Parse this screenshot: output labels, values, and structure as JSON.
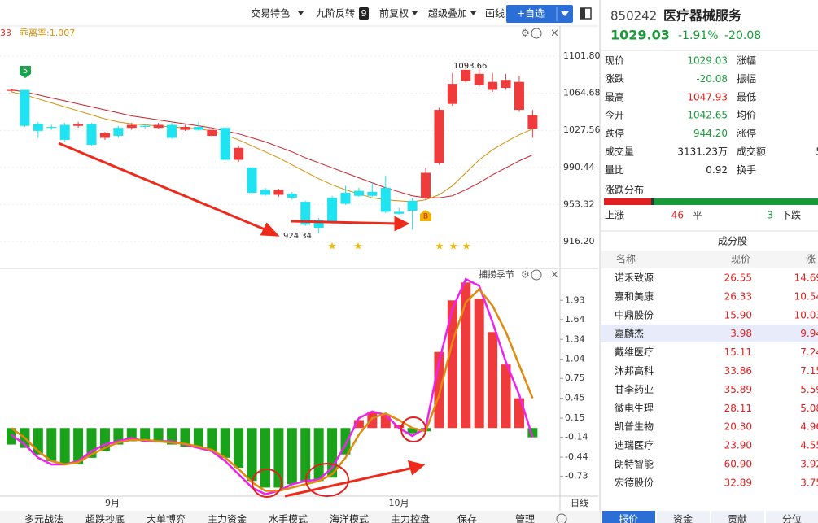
{
  "toolbar": {
    "items": [
      "交易特色",
      "九阶反转",
      "前复权",
      "超级叠加",
      "画线"
    ],
    "badge": "9",
    "add_button": "+自选"
  },
  "chart": {
    "type": "candlestick",
    "label_prefix": "33",
    "label": "乖离率:1.007",
    "signal_top": "5",
    "signal_buy": "B",
    "ylim": [
      899.1,
      1125.4
    ],
    "yticks": [
      {
        "value": 1101.8,
        "label": "1101.80"
      },
      1064.68,
      1027.56,
      990.44,
      953.32,
      {
        "value": 916.2,
        "label": "916.20"
      }
    ],
    "high_note": 1093.66,
    "low_note": 924.34,
    "candles": [
      {
        "o": 1068,
        "h": 1069,
        "l": 1066,
        "c": 1067,
        "color": "#ee3b3b"
      },
      {
        "o": 1068,
        "h": 1068,
        "l": 1031,
        "c": 1032,
        "color": "#1fe3f0"
      },
      {
        "o": 1034,
        "h": 1036,
        "l": 1020,
        "c": 1027,
        "color": "#1fe3f0"
      },
      {
        "o": 1031,
        "h": 1033,
        "l": 1028,
        "c": 1030,
        "color": "#1fe3f0"
      },
      {
        "o": 1033,
        "h": 1035,
        "l": 1016,
        "c": 1018,
        "color": "#1fe3f0"
      },
      {
        "o": 1032,
        "h": 1036,
        "l": 1030,
        "c": 1034,
        "color": "#ee3b3b"
      },
      {
        "o": 1034,
        "h": 1035,
        "l": 1012,
        "c": 1013,
        "color": "#1fe3f0"
      },
      {
        "o": 1020,
        "h": 1026,
        "l": 1018,
        "c": 1025,
        "color": "#ee3b3b"
      },
      {
        "o": 1030,
        "h": 1032,
        "l": 1020,
        "c": 1022,
        "color": "#1fe3f0"
      },
      {
        "o": 1030,
        "h": 1035,
        "l": 1028,
        "c": 1033,
        "color": "#ee3b3b"
      },
      {
        "o": 1032,
        "h": 1034,
        "l": 1029,
        "c": 1031,
        "color": "#1fe3f0"
      },
      {
        "o": 1030,
        "h": 1035,
        "l": 1029,
        "c": 1033,
        "color": "#ee3b3b"
      },
      {
        "o": 1033,
        "h": 1035,
        "l": 1019,
        "c": 1020,
        "color": "#1fe3f0"
      },
      {
        "o": 1028,
        "h": 1033,
        "l": 1027,
        "c": 1031,
        "color": "#ee3b3b"
      },
      {
        "o": 1031,
        "h": 1036,
        "l": 1027,
        "c": 1028,
        "color": "#1fe3f0"
      },
      {
        "o": 1022,
        "h": 1029,
        "l": 1021,
        "c": 1028,
        "color": "#ee3b3b"
      },
      {
        "o": 1030,
        "h": 1031,
        "l": 997,
        "c": 998,
        "color": "#1fe3f0"
      },
      {
        "o": 998,
        "h": 1012,
        "l": 996,
        "c": 1010,
        "color": "#ee3b3b"
      },
      {
        "o": 990,
        "h": 991,
        "l": 964,
        "c": 965,
        "color": "#1fe3f0"
      },
      {
        "o": 968,
        "h": 970,
        "l": 962,
        "c": 963,
        "color": "#1fe3f0"
      },
      {
        "o": 963,
        "h": 969,
        "l": 961,
        "c": 968,
        "color": "#ee3b3b"
      },
      {
        "o": 964,
        "h": 966,
        "l": 958,
        "c": 960,
        "color": "#1fe3f0"
      },
      {
        "o": 956,
        "h": 957,
        "l": 932,
        "c": 933,
        "color": "#1fe3f0"
      },
      {
        "o": 938,
        "h": 940,
        "l": 924.34,
        "c": 930,
        "color": "#1fe3f0"
      },
      {
        "o": 960,
        "h": 962,
        "l": 934,
        "c": 936,
        "color": "#1fe3f0"
      },
      {
        "o": 965,
        "h": 972,
        "l": 953,
        "c": 954,
        "color": "#1fe3f0"
      },
      {
        "o": 967,
        "h": 970,
        "l": 961,
        "c": 962,
        "color": "#1fe3f0"
      },
      {
        "o": 966,
        "h": 975,
        "l": 961,
        "c": 962,
        "color": "#1fe3f0"
      },
      {
        "o": 970,
        "h": 982,
        "l": 945,
        "c": 946,
        "color": "#1fe3f0"
      },
      {
        "o": 946,
        "h": 950,
        "l": 943,
        "c": 944,
        "color": "#1fe3f0"
      },
      {
        "o": 957,
        "h": 960,
        "l": 928,
        "c": 947,
        "color": "#1fe3f0"
      },
      {
        "o": 960,
        "h": 990,
        "l": 958,
        "c": 985,
        "color": "#ee3b3b"
      },
      {
        "o": 995,
        "h": 1050,
        "l": 993,
        "c": 1048,
        "color": "#ee3b3b"
      },
      {
        "o": 1054,
        "h": 1085,
        "l": 1052,
        "c": 1074,
        "color": "#ee3b3b"
      },
      {
        "o": 1077,
        "h": 1093.66,
        "l": 1075,
        "c": 1088,
        "color": "#ee3b3b"
      },
      {
        "o": 1073,
        "h": 1090,
        "l": 1071,
        "c": 1084,
        "color": "#ee3b3b"
      },
      {
        "o": 1068,
        "h": 1085,
        "l": 1066,
        "c": 1076,
        "color": "#ee3b3b"
      },
      {
        "o": 1070,
        "h": 1084,
        "l": 1068,
        "c": 1078,
        "color": "#ee3b3b"
      },
      {
        "o": 1076,
        "h": 1082,
        "l": 1046,
        "c": 1048,
        "color": "#ee3b3b"
      },
      {
        "o": 1042.65,
        "h": 1047.93,
        "l": 1020,
        "c": 1029.03,
        "color": "#ee3b3b"
      }
    ],
    "ma": [
      {
        "color": "#c8242c",
        "values": [
          1068,
          1066,
          1063,
          1060,
          1057,
          1054,
          1051,
          1048,
          1045,
          1042,
          1040,
          1038,
          1036,
          1034,
          1032,
          1030,
          1027,
          1024,
          1020,
          1016,
          1011,
          1006,
          1000,
          995,
          990,
          985,
          980,
          975,
          970,
          966,
          962,
          960,
          960,
          962,
          968,
          975,
          983,
          990,
          997,
          1003
        ]
      },
      {
        "color": "#d4900c",
        "values": [
          1066,
          1063,
          1059,
          1055,
          1051,
          1047,
          1043,
          1039,
          1036,
          1034,
          1033,
          1032,
          1031,
          1030,
          1029,
          1027,
          1023,
          1018,
          1012,
          1006,
          1000,
          993,
          986,
          979,
          973,
          968,
          964,
          960,
          958,
          957,
          956,
          958,
          963,
          972,
          985,
          998,
          1008,
          1016,
          1023,
          1029
        ]
      }
    ]
  },
  "indicator": {
    "type": "bar",
    "title": "捕捞季节",
    "ylim": [
      -1.03,
      2.29
    ],
    "yticks": [
      1.93,
      1.64,
      1.34,
      1.04,
      0.75,
      0.45,
      0.15,
      -0.14,
      -0.44,
      -0.73
    ],
    "up_color": "#ee3b3b",
    "down_color": "#1aa31a",
    "values": [
      -0.25,
      -0.3,
      -0.4,
      -0.5,
      -0.55,
      -0.55,
      -0.45,
      -0.35,
      -0.25,
      -0.2,
      -0.2,
      -0.22,
      -0.25,
      -0.28,
      -0.3,
      -0.35,
      -0.45,
      -0.6,
      -0.8,
      -0.9,
      -0.9,
      -0.85,
      -0.8,
      -0.8,
      -0.75,
      -0.4,
      0.12,
      0.25,
      0.2,
      0.05,
      -0.08,
      -0.05,
      1.15,
      1.93,
      2.2,
      1.95,
      1.45,
      0.96,
      0.45,
      -0.14
    ],
    "lines": [
      {
        "color": "#ee22ee",
        "values": [
          -0.1,
          -0.25,
          -0.45,
          -0.55,
          -0.55,
          -0.5,
          -0.35,
          -0.25,
          -0.2,
          -0.15,
          -0.2,
          -0.2,
          -0.2,
          -0.25,
          -0.3,
          -0.35,
          -0.5,
          -0.7,
          -0.9,
          -1.0,
          -0.95,
          -0.85,
          -0.8,
          -0.78,
          -0.6,
          -0.25,
          0.15,
          0.25,
          0.2,
          0.0,
          -0.12,
          0.0,
          1.0,
          1.8,
          2.25,
          2.15,
          1.6,
          1.0,
          0.5,
          -0.14
        ]
      },
      {
        "color": "#e08a10",
        "values": [
          0.0,
          -0.15,
          -0.35,
          -0.5,
          -0.55,
          -0.52,
          -0.4,
          -0.3,
          -0.22,
          -0.18,
          -0.18,
          -0.2,
          -0.22,
          -0.24,
          -0.28,
          -0.33,
          -0.45,
          -0.62,
          -0.82,
          -0.95,
          -0.95,
          -0.9,
          -0.85,
          -0.8,
          -0.7,
          -0.45,
          -0.1,
          0.15,
          0.22,
          0.12,
          0.0,
          -0.05,
          0.5,
          1.3,
          1.9,
          2.1,
          1.85,
          1.45,
          0.95,
          0.45
        ]
      }
    ]
  },
  "xaxis": {
    "labels": [
      "9月",
      "10月"
    ],
    "period": "日线"
  },
  "bottom_tabs": [
    "多元战法",
    "超跌抄底",
    "大单博弈",
    "主力资金",
    "水手模式",
    "海洋模式",
    "主力控盘",
    "保存",
    "管理"
  ],
  "quote": {
    "code": "850242",
    "name": "医疗器械服务",
    "price": "1029.03",
    "change_pct": "-1.91%",
    "change": "-20.08",
    "rows": [
      [
        "现价",
        "1029.03",
        "涨幅",
        ""
      ],
      [
        "涨跌",
        "-20.08",
        "振幅",
        ""
      ],
      [
        "最高",
        "1047.93",
        "最低",
        ""
      ],
      [
        "今开",
        "1042.65",
        "均价",
        ""
      ],
      [
        "跌停",
        "944.20",
        "涨停",
        ""
      ],
      [
        "成交量",
        "3131.23万",
        "成交额",
        "5"
      ],
      [
        "量比",
        "0.92",
        "换手",
        ""
      ]
    ]
  },
  "distribution": {
    "title": "涨跌分布",
    "up_label": "上涨",
    "up": 46,
    "flat_label": "平",
    "flat": 3,
    "down_label": "下跌"
  },
  "constituents": {
    "title": "成分股",
    "headers": [
      "名称",
      "现价",
      "涨"
    ],
    "rows": [
      [
        "诺禾致源",
        "26.55",
        "14.69"
      ],
      [
        "嘉和美康",
        "26.33",
        "10.54"
      ],
      [
        "中鼎股份",
        "15.90",
        "10.03"
      ],
      [
        "嘉麟杰",
        "3.98",
        "9.94"
      ],
      [
        "戴维医疗",
        "15.11",
        "7.24"
      ],
      [
        "沐邦高科",
        "33.86",
        "7.15"
      ],
      [
        "甘李药业",
        "35.89",
        "5.59"
      ],
      [
        "微电生理",
        "28.11",
        "5.08"
      ],
      [
        "凯普生物",
        "20.30",
        "4.96"
      ],
      [
        "迪瑞医疗",
        "23.90",
        "4.55"
      ],
      [
        "朗特智能",
        "60.90",
        "3.92"
      ],
      [
        "宏德股份",
        "32.89",
        "3.75"
      ]
    ]
  },
  "panel_tabs": [
    "报价",
    "资金",
    "贡献",
    "分位"
  ]
}
